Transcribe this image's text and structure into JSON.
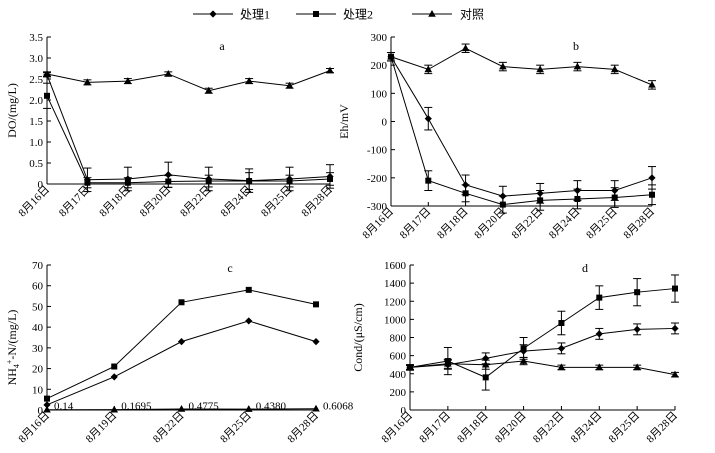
{
  "legend": {
    "items": [
      {
        "label": "处理1",
        "marker": "diamond"
      },
      {
        "label": "处理2",
        "marker": "square"
      },
      {
        "label": "对照",
        "marker": "triangle"
      }
    ]
  },
  "chart_data": [
    {
      "id": "a",
      "type": "line",
      "panel_label": "a",
      "ylabel": "DO/(mg/L)",
      "ylim": [
        0,
        3.5
      ],
      "yticks": [
        0,
        0.5,
        1.0,
        1.5,
        2.0,
        2.5,
        3.0,
        3.5
      ],
      "ytick_labels": [
        "0",
        "0.5",
        "1.0",
        "1.5",
        "2.0",
        "2.5",
        "3.0",
        "3.5"
      ],
      "categories": [
        "8月16日",
        "8月17日",
        "8月18日",
        "8月20日",
        "8月22日",
        "8月24日",
        "8月25日",
        "8月28日"
      ],
      "series": [
        {
          "name": "处理1",
          "marker": "diamond",
          "values": [
            2.6,
            0.1,
            0.12,
            0.22,
            0.12,
            0.08,
            0.12,
            0.18
          ],
          "errors": [
            0.05,
            0.28,
            0.28,
            0.3,
            0.28,
            0.28,
            0.28,
            0.28
          ]
        },
        {
          "name": "处理2",
          "marker": "square",
          "values": [
            2.1,
            0.03,
            0.03,
            0.06,
            0.07,
            0.07,
            0.07,
            0.12
          ],
          "errors": [
            0.3,
            0.12,
            0.12,
            0.14,
            0.14,
            0.2,
            0.14,
            0.15
          ]
        },
        {
          "name": "对照",
          "marker": "triangle",
          "values": [
            2.62,
            2.42,
            2.45,
            2.62,
            2.22,
            2.45,
            2.34,
            2.7
          ],
          "errors": [
            0.05,
            0.06,
            0.06,
            0.05,
            0.06,
            0.06,
            0.06,
            0.05
          ]
        }
      ]
    },
    {
      "id": "b",
      "type": "line",
      "panel_label": "b",
      "ylabel": "Eh/mV",
      "ylim": [
        -300,
        300
      ],
      "yticks": [
        -300,
        -200,
        -100,
        0,
        100,
        200,
        300
      ],
      "ytick_labels": [
        "-300",
        "-200",
        "-100",
        "0",
        "100",
        "200",
        "300"
      ],
      "categories": [
        "8月16日",
        "8月17日",
        "8月18日",
        "8月20日",
        "8月22日",
        "8月24日",
        "8月25日",
        "8月28日"
      ],
      "series": [
        {
          "name": "处理1",
          "marker": "diamond",
          "values": [
            230,
            10,
            -225,
            -265,
            -255,
            -245,
            -245,
            -200
          ],
          "errors": [
            15,
            40,
            35,
            35,
            35,
            35,
            35,
            40
          ]
        },
        {
          "name": "处理2",
          "marker": "square",
          "values": [
            230,
            -210,
            -255,
            -295,
            -280,
            -275,
            -270,
            -260
          ],
          "errors": [
            15,
            35,
            30,
            30,
            35,
            35,
            35,
            35
          ]
        },
        {
          "name": "对照",
          "marker": "triangle",
          "values": [
            230,
            185,
            260,
            195,
            185,
            195,
            185,
            130
          ],
          "errors": [
            15,
            15,
            15,
            15,
            15,
            15,
            15,
            15
          ]
        }
      ]
    },
    {
      "id": "c",
      "type": "line",
      "panel_label": "c",
      "ylabel": "NH4+-N/(mg/L)",
      "ylim": [
        0,
        70
      ],
      "yticks": [
        0,
        10,
        20,
        30,
        40,
        50,
        60,
        70
      ],
      "ytick_labels": [
        "0",
        "10",
        "20",
        "30",
        "40",
        "50",
        "60",
        "70"
      ],
      "categories": [
        "8月16日",
        "8月19日",
        "8月22日",
        "8月25日",
        "8月28日"
      ],
      "series": [
        {
          "name": "处理1",
          "marker": "diamond",
          "values": [
            2.5,
            16,
            33,
            43,
            33
          ]
        },
        {
          "name": "处理2",
          "marker": "square",
          "values": [
            5.5,
            21,
            52,
            58,
            51
          ]
        },
        {
          "name": "对照",
          "marker": "triangle",
          "values": [
            0.14,
            0.1695,
            0.4775,
            0.438,
            0.6068
          ]
        }
      ],
      "annotations": [
        "0.14",
        "0.1695",
        "0.4775",
        "0.4380",
        "0.6068"
      ]
    },
    {
      "id": "d",
      "type": "line",
      "panel_label": "d",
      "ylabel": "Cond/(μS/cm)",
      "ylim": [
        0,
        1600
      ],
      "yticks": [
        0,
        200,
        400,
        600,
        800,
        1000,
        1200,
        1400,
        1600
      ],
      "ytick_labels": [
        "0",
        "200",
        "400",
        "600",
        "800",
        "1000",
        "1200",
        "1400",
        "1600"
      ],
      "categories": [
        "8月16日",
        "8月17日",
        "8月18日",
        "8月20日",
        "8月22日",
        "8月24日",
        "8月25日",
        "8月28日"
      ],
      "series": [
        {
          "name": "处理1",
          "marker": "diamond",
          "values": [
            470,
            500,
            570,
            650,
            680,
            840,
            890,
            900
          ],
          "errors": [
            30,
            50,
            60,
            70,
            60,
            60,
            60,
            60
          ]
        },
        {
          "name": "处理2",
          "marker": "square",
          "values": [
            470,
            540,
            360,
            680,
            960,
            1240,
            1300,
            1340
          ],
          "errors": [
            30,
            150,
            140,
            120,
            130,
            130,
            150,
            150
          ]
        },
        {
          "name": "对照",
          "marker": "triangle",
          "values": [
            470,
            510,
            500,
            540,
            470,
            470,
            470,
            390
          ],
          "errors": [
            20,
            50,
            50,
            40,
            25,
            25,
            25,
            25
          ]
        }
      ]
    }
  ]
}
